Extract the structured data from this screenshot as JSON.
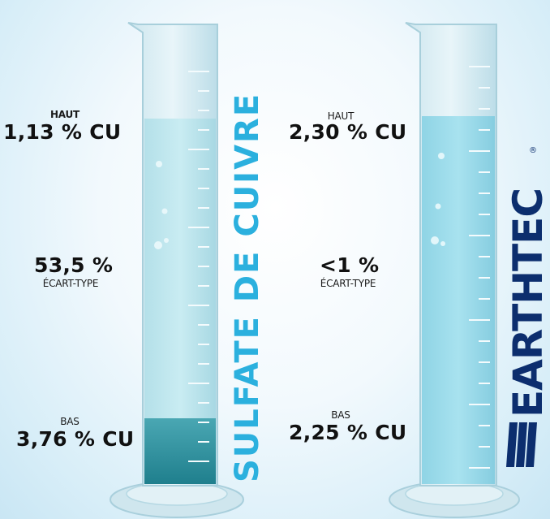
{
  "left": {
    "haut_label": "HAUT",
    "haut_value": "1,13 % CU",
    "sd_value": "53,5 %",
    "sd_label": "ÉCART-TYPE",
    "bas_label": "BAS",
    "bas_value": "3,76 % CU"
  },
  "right": {
    "haut_label": "HAUT",
    "haut_value": "2,30 % CU",
    "sd_value": "<1 %",
    "sd_label": "ÉCART-TYPE",
    "bas_label": "BAS",
    "bas_value": "2,25 % CU"
  },
  "left_title": "SULFATE DE CUIVRE",
  "brand": "EARTHTEC",
  "brand_mark": "®",
  "colors": {
    "left_title": "#2bb0de",
    "brand": "#0c2e6e",
    "liquid_light": "#bfe6ee",
    "liquid_right": "#9fdceb",
    "sediment": "#2e8f9c"
  }
}
